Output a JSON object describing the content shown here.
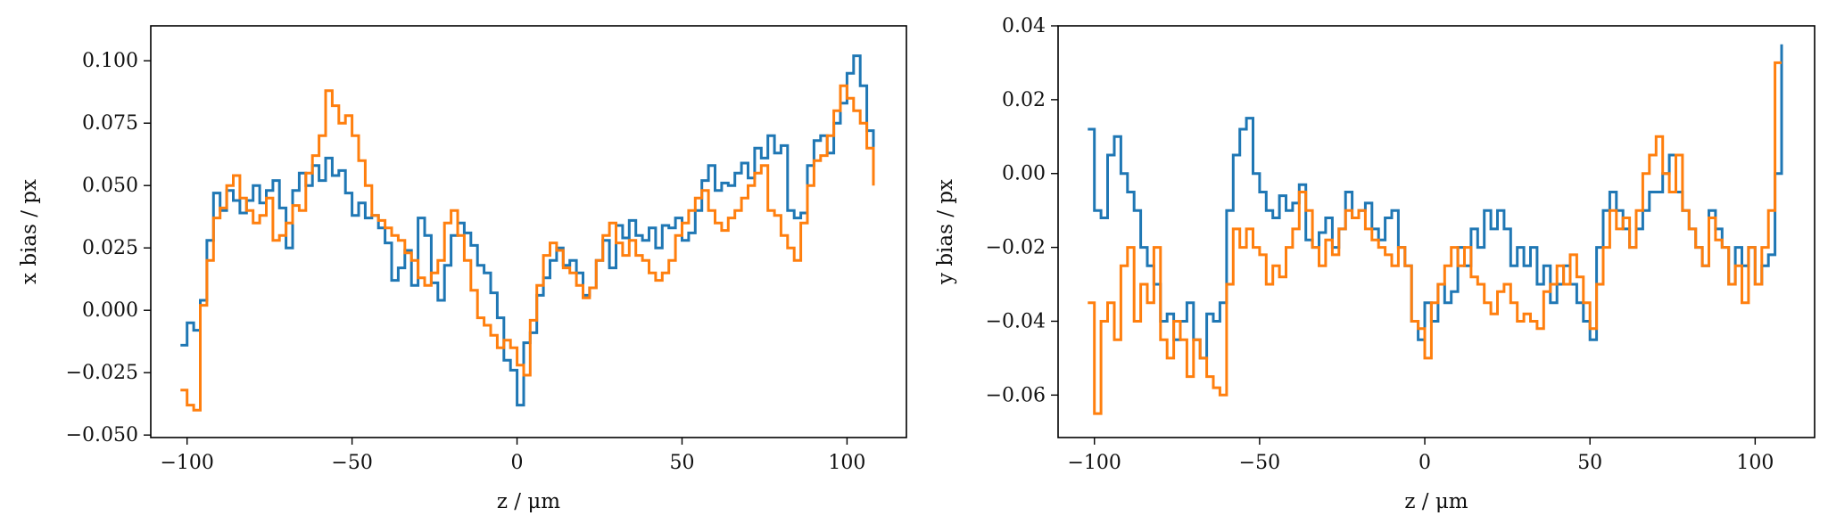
{
  "chart_data": [
    {
      "type": "line",
      "xlabel": "z / μm",
      "ylabel": "x bias / px",
      "xlim": [
        -111,
        118
      ],
      "ylim": [
        -0.051,
        0.114
      ],
      "xticks": [
        -100,
        -50,
        0,
        50,
        100
      ],
      "yticks": [
        -0.05,
        -0.025,
        0.0,
        0.025,
        0.05,
        0.075,
        0.1
      ],
      "ytick_labels": [
        "−0.050",
        "−0.025",
        "0.000",
        "0.025",
        "0.050",
        "0.075",
        "0.100"
      ],
      "xtick_labels": [
        "−100",
        "−50",
        "0",
        "50",
        "100"
      ],
      "grid": false,
      "series": [
        {
          "color": "#1f77b4",
          "x": [
            -102,
            -100,
            -98,
            -96,
            -94,
            -92,
            -90,
            -88,
            -86,
            -84,
            -82,
            -80,
            -78,
            -76,
            -74,
            -72,
            -70,
            -68,
            -66,
            -64,
            -62,
            -60,
            -58,
            -56,
            -54,
            -52,
            -50,
            -48,
            -46,
            -44,
            -42,
            -40,
            -38,
            -36,
            -34,
            -32,
            -30,
            -28,
            -26,
            -24,
            -22,
            -20,
            -18,
            -16,
            -14,
            -12,
            -10,
            -8,
            -6,
            -4,
            -2,
            0,
            2,
            4,
            6,
            8,
            10,
            12,
            14,
            16,
            18,
            20,
            22,
            24,
            26,
            28,
            30,
            32,
            34,
            36,
            38,
            40,
            42,
            44,
            46,
            48,
            50,
            52,
            54,
            56,
            58,
            60,
            62,
            64,
            66,
            68,
            70,
            72,
            74,
            76,
            78,
            80,
            82,
            84,
            86,
            88,
            90,
            92,
            94,
            96,
            98,
            100,
            102,
            104,
            106,
            108
          ],
          "y": [
            -0.014,
            -0.005,
            -0.008,
            0.004,
            0.028,
            0.047,
            0.04,
            0.048,
            0.044,
            0.039,
            0.044,
            0.05,
            0.043,
            0.048,
            0.052,
            0.041,
            0.025,
            0.048,
            0.055,
            0.05,
            0.058,
            0.052,
            0.061,
            0.054,
            0.056,
            0.047,
            0.038,
            0.043,
            0.037,
            0.038,
            0.033,
            0.027,
            0.012,
            0.017,
            0.024,
            0.01,
            0.037,
            0.03,
            0.011,
            0.004,
            0.018,
            0.03,
            0.035,
            0.031,
            0.026,
            0.018,
            0.015,
            0.007,
            -0.003,
            -0.02,
            -0.024,
            -0.038,
            -0.013,
            -0.009,
            0.006,
            0.013,
            0.02,
            0.025,
            0.018,
            0.02,
            0.015,
            0.006,
            0.009,
            0.02,
            0.028,
            0.017,
            0.034,
            0.029,
            0.036,
            0.03,
            0.028,
            0.033,
            0.025,
            0.034,
            0.033,
            0.037,
            0.028,
            0.031,
            0.04,
            0.052,
            0.058,
            0.048,
            0.051,
            0.05,
            0.055,
            0.059,
            0.053,
            0.065,
            0.061,
            0.07,
            0.063,
            0.066,
            0.04,
            0.037,
            0.039,
            0.058,
            0.068,
            0.07,
            0.063,
            0.075,
            0.083,
            0.095,
            0.102,
            0.09,
            0.072,
            0.062
          ]
        },
        {
          "color": "#ff7f0e",
          "x": [
            -102,
            -100,
            -98,
            -96,
            -94,
            -92,
            -90,
            -88,
            -86,
            -84,
            -82,
            -80,
            -78,
            -76,
            -74,
            -72,
            -70,
            -68,
            -66,
            -64,
            -62,
            -60,
            -58,
            -56,
            -54,
            -52,
            -50,
            -48,
            -46,
            -44,
            -42,
            -40,
            -38,
            -36,
            -34,
            -32,
            -30,
            -28,
            -26,
            -24,
            -22,
            -20,
            -18,
            -16,
            -14,
            -12,
            -10,
            -8,
            -6,
            -4,
            -2,
            0,
            2,
            4,
            6,
            8,
            10,
            12,
            14,
            16,
            18,
            20,
            22,
            24,
            26,
            28,
            30,
            32,
            34,
            36,
            38,
            40,
            42,
            44,
            46,
            48,
            50,
            52,
            54,
            56,
            58,
            60,
            62,
            64,
            66,
            68,
            70,
            72,
            74,
            76,
            78,
            80,
            82,
            84,
            86,
            88,
            90,
            92,
            94,
            96,
            98,
            100,
            102,
            104,
            106,
            108
          ],
          "y": [
            -0.032,
            -0.038,
            -0.04,
            0.002,
            0.02,
            0.037,
            0.041,
            0.05,
            0.054,
            0.045,
            0.04,
            0.035,
            0.038,
            0.045,
            0.028,
            0.03,
            0.035,
            0.042,
            0.04,
            0.055,
            0.062,
            0.07,
            0.088,
            0.082,
            0.075,
            0.078,
            0.07,
            0.06,
            0.05,
            0.038,
            0.036,
            0.033,
            0.03,
            0.028,
            0.023,
            0.02,
            0.013,
            0.01,
            0.015,
            0.02,
            0.035,
            0.04,
            0.03,
            0.02,
            0.008,
            -0.003,
            -0.006,
            -0.01,
            -0.015,
            -0.012,
            -0.015,
            -0.022,
            -0.026,
            -0.004,
            0.01,
            0.022,
            0.027,
            0.024,
            0.017,
            0.015,
            0.01,
            0.005,
            0.009,
            0.02,
            0.03,
            0.035,
            0.027,
            0.022,
            0.028,
            0.022,
            0.02,
            0.015,
            0.012,
            0.015,
            0.02,
            0.03,
            0.035,
            0.04,
            0.045,
            0.048,
            0.04,
            0.035,
            0.032,
            0.037,
            0.04,
            0.045,
            0.05,
            0.055,
            0.058,
            0.04,
            0.038,
            0.03,
            0.025,
            0.02,
            0.035,
            0.05,
            0.06,
            0.062,
            0.07,
            0.08,
            0.09,
            0.085,
            0.08,
            0.075,
            0.065,
            0.05
          ]
        }
      ]
    },
    {
      "type": "line",
      "xlabel": "z / μm",
      "ylabel": "y bias / px",
      "xlim": [
        -111,
        118
      ],
      "ylim": [
        -0.0715,
        0.04
      ],
      "xticks": [
        -100,
        -50,
        0,
        50,
        100
      ],
      "yticks": [
        -0.06,
        -0.04,
        -0.02,
        0.0,
        0.02,
        0.04
      ],
      "ytick_labels": [
        "−0.06",
        "−0.04",
        "−0.02",
        "0.00",
        "0.02",
        "0.04"
      ],
      "xtick_labels": [
        "−100",
        "−50",
        "0",
        "50",
        "100"
      ],
      "grid": false,
      "series": [
        {
          "color": "#1f77b4",
          "x": [
            -102,
            -100,
            -98,
            -96,
            -94,
            -92,
            -90,
            -88,
            -86,
            -84,
            -82,
            -80,
            -78,
            -76,
            -74,
            -72,
            -70,
            -68,
            -66,
            -64,
            -62,
            -60,
            -58,
            -56,
            -54,
            -52,
            -50,
            -48,
            -46,
            -44,
            -42,
            -40,
            -38,
            -36,
            -34,
            -32,
            -30,
            -28,
            -26,
            -24,
            -22,
            -20,
            -18,
            -16,
            -14,
            -12,
            -10,
            -8,
            -6,
            -4,
            -2,
            0,
            2,
            4,
            6,
            8,
            10,
            12,
            14,
            16,
            18,
            20,
            22,
            24,
            26,
            28,
            30,
            32,
            34,
            36,
            38,
            40,
            42,
            44,
            46,
            48,
            50,
            52,
            54,
            56,
            58,
            60,
            62,
            64,
            66,
            68,
            70,
            72,
            74,
            76,
            78,
            80,
            82,
            84,
            86,
            88,
            90,
            92,
            94,
            96,
            98,
            100,
            102,
            104,
            106,
            108
          ],
          "y": [
            0.012,
            -0.01,
            -0.012,
            0.005,
            0.01,
            0.0,
            -0.005,
            -0.01,
            -0.02,
            -0.025,
            -0.03,
            -0.04,
            -0.038,
            -0.045,
            -0.04,
            -0.035,
            -0.045,
            -0.05,
            -0.038,
            -0.04,
            -0.035,
            -0.01,
            0.005,
            0.012,
            0.015,
            0.0,
            -0.005,
            -0.01,
            -0.012,
            -0.006,
            -0.01,
            -0.008,
            -0.003,
            -0.018,
            -0.02,
            -0.016,
            -0.012,
            -0.02,
            -0.015,
            -0.005,
            -0.012,
            -0.01,
            -0.008,
            -0.015,
            -0.018,
            -0.012,
            -0.01,
            -0.02,
            -0.025,
            -0.04,
            -0.045,
            -0.035,
            -0.04,
            -0.03,
            -0.035,
            -0.032,
            -0.02,
            -0.025,
            -0.015,
            -0.02,
            -0.01,
            -0.015,
            -0.01,
            -0.015,
            -0.025,
            -0.02,
            -0.025,
            -0.02,
            -0.03,
            -0.025,
            -0.035,
            -0.03,
            -0.025,
            -0.03,
            -0.035,
            -0.04,
            -0.045,
            -0.02,
            -0.01,
            -0.005,
            -0.01,
            -0.015,
            -0.02,
            -0.015,
            -0.01,
            -0.005,
            -0.005,
            0.0,
            0.005,
            -0.005,
            -0.01,
            -0.015,
            -0.02,
            -0.025,
            -0.01,
            -0.015,
            -0.02,
            -0.03,
            -0.02,
            -0.025,
            -0.02,
            -0.03,
            -0.025,
            -0.022,
            0.0,
            0.035
          ]
        },
        {
          "color": "#ff7f0e",
          "x": [
            -102,
            -100,
            -98,
            -96,
            -94,
            -92,
            -90,
            -88,
            -86,
            -84,
            -82,
            -80,
            -78,
            -76,
            -74,
            -72,
            -70,
            -68,
            -66,
            -64,
            -62,
            -60,
            -58,
            -56,
            -54,
            -52,
            -50,
            -48,
            -46,
            -44,
            -42,
            -40,
            -38,
            -36,
            -34,
            -32,
            -30,
            -28,
            -26,
            -24,
            -22,
            -20,
            -18,
            -16,
            -14,
            -12,
            -10,
            -8,
            -6,
            -4,
            -2,
            0,
            2,
            4,
            6,
            8,
            10,
            12,
            14,
            16,
            18,
            20,
            22,
            24,
            26,
            28,
            30,
            32,
            34,
            36,
            38,
            40,
            42,
            44,
            46,
            48,
            50,
            52,
            54,
            56,
            58,
            60,
            62,
            64,
            66,
            68,
            70,
            72,
            74,
            76,
            78,
            80,
            82,
            84,
            86,
            88,
            90,
            92,
            94,
            96,
            98,
            100,
            102,
            104,
            106,
            108
          ],
          "y": [
            -0.035,
            -0.065,
            -0.04,
            -0.035,
            -0.045,
            -0.025,
            -0.02,
            -0.04,
            -0.03,
            -0.035,
            -0.02,
            -0.045,
            -0.05,
            -0.04,
            -0.045,
            -0.055,
            -0.045,
            -0.05,
            -0.055,
            -0.058,
            -0.06,
            -0.03,
            -0.015,
            -0.02,
            -0.015,
            -0.02,
            -0.022,
            -0.03,
            -0.025,
            -0.028,
            -0.02,
            -0.015,
            -0.005,
            -0.01,
            -0.02,
            -0.025,
            -0.018,
            -0.022,
            -0.015,
            -0.01,
            -0.012,
            -0.01,
            -0.015,
            -0.018,
            -0.02,
            -0.022,
            -0.025,
            -0.02,
            -0.025,
            -0.04,
            -0.042,
            -0.05,
            -0.035,
            -0.03,
            -0.025,
            -0.02,
            -0.025,
            -0.02,
            -0.028,
            -0.03,
            -0.035,
            -0.038,
            -0.032,
            -0.03,
            -0.035,
            -0.04,
            -0.038,
            -0.04,
            -0.042,
            -0.032,
            -0.03,
            -0.025,
            -0.03,
            -0.022,
            -0.028,
            -0.035,
            -0.042,
            -0.03,
            -0.02,
            -0.01,
            -0.015,
            -0.012,
            -0.02,
            -0.01,
            0.0,
            0.005,
            0.01,
            0.0,
            -0.005,
            0.005,
            -0.01,
            -0.015,
            -0.02,
            -0.025,
            -0.012,
            -0.018,
            -0.02,
            -0.03,
            -0.025,
            -0.035,
            -0.02,
            -0.03,
            -0.02,
            -0.01,
            0.03,
            0.03
          ]
        }
      ]
    }
  ]
}
